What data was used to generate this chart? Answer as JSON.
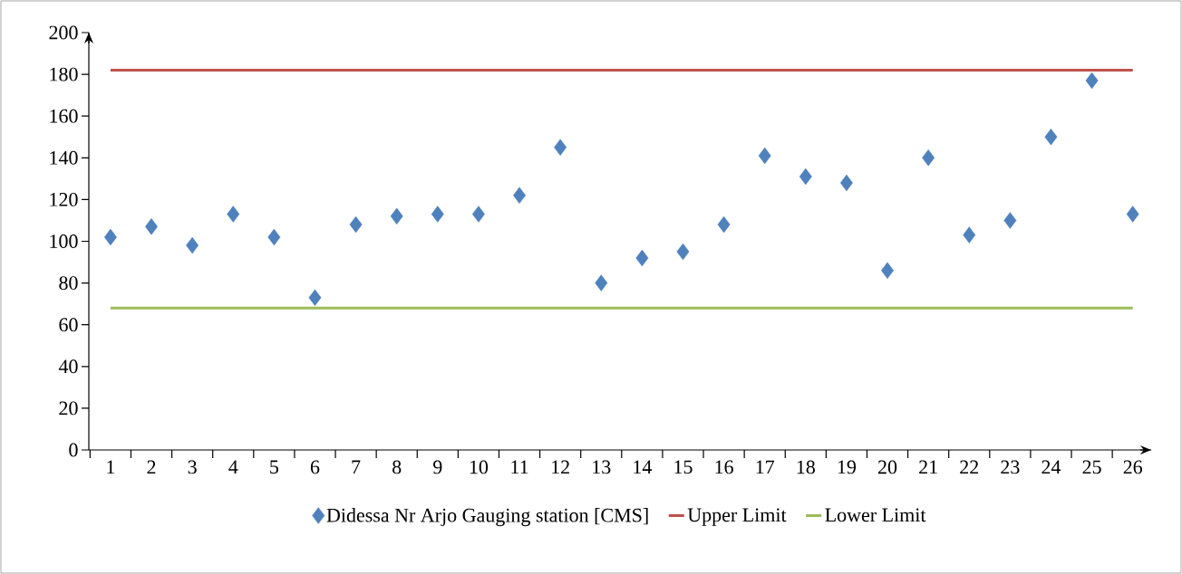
{
  "chart_data": {
    "type": "scatter",
    "categories": [
      "1",
      "2",
      "3",
      "4",
      "5",
      "6",
      "7",
      "8",
      "9",
      "10",
      "11",
      "12",
      "13",
      "14",
      "15",
      "16",
      "17",
      "18",
      "19",
      "20",
      "21",
      "22",
      "23",
      "24",
      "25",
      "26"
    ],
    "ylim": [
      0,
      200
    ],
    "yticks": [
      0,
      20,
      40,
      60,
      80,
      100,
      120,
      140,
      160,
      180,
      200
    ],
    "grid": false,
    "legend": "bottom",
    "series": [
      {
        "name": "Didessa Nr Arjo Gauging station [CMS]",
        "marker": "diamond",
        "color": "#4f81bd",
        "values": [
          102,
          107,
          98,
          113,
          102,
          73,
          108,
          112,
          113,
          113,
          122,
          145,
          80,
          92,
          95,
          108,
          141,
          131,
          128,
          86,
          140,
          103,
          110,
          150,
          177,
          113
        ]
      },
      {
        "name": "Upper Limit",
        "type": "line",
        "marker": "none",
        "color": "#c0504d",
        "values": [
          182,
          182,
          182,
          182,
          182,
          182,
          182,
          182,
          182,
          182,
          182,
          182,
          182,
          182,
          182,
          182,
          182,
          182,
          182,
          182,
          182,
          182,
          182,
          182,
          182,
          182
        ]
      },
      {
        "name": "Lower Limit",
        "type": "line",
        "marker": "none",
        "color": "#9bbb59",
        "values": [
          68,
          68,
          68,
          68,
          68,
          68,
          68,
          68,
          68,
          68,
          68,
          68,
          68,
          68,
          68,
          68,
          68,
          68,
          68,
          68,
          68,
          68,
          68,
          68,
          68,
          68
        ]
      }
    ]
  }
}
